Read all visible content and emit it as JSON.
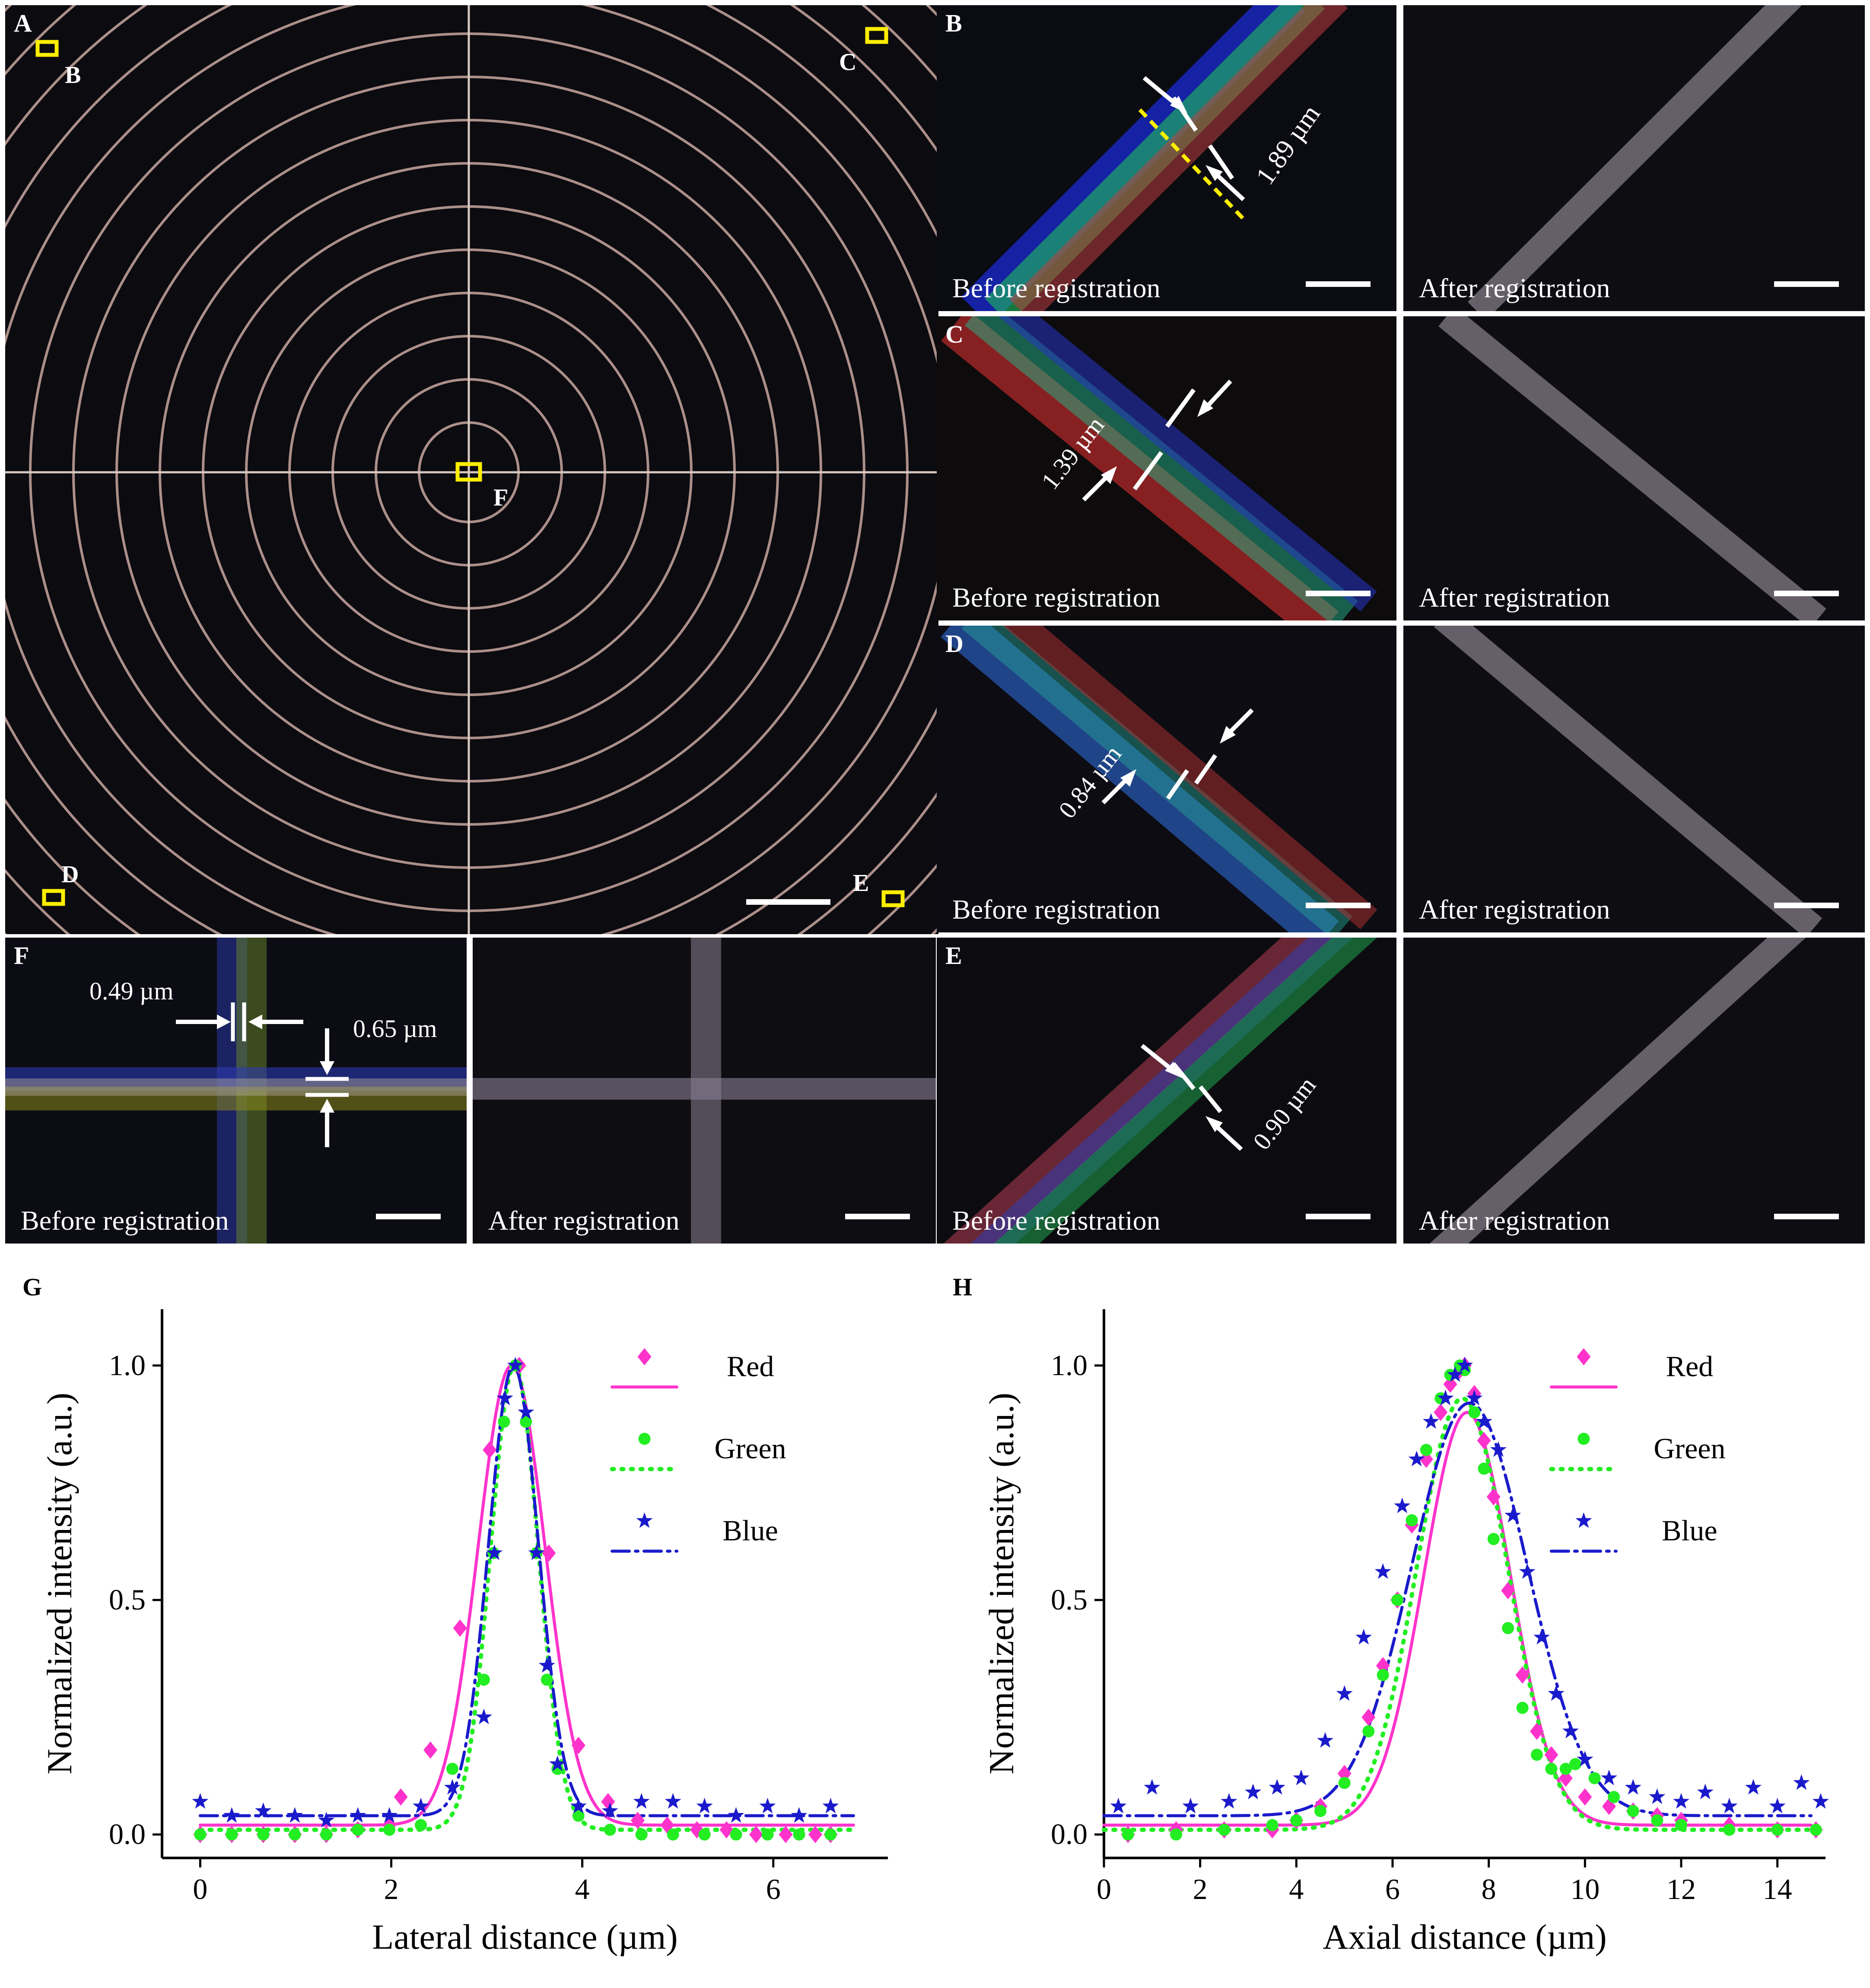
{
  "figure": {
    "panel_A": {
      "letter": "A",
      "markers": [
        "B",
        "C",
        "D",
        "E",
        "F"
      ]
    },
    "panel_B": {
      "letter": "B",
      "measurement": "1.89 µm",
      "before_label": "Before registration",
      "after_label": "After registration"
    },
    "panel_C": {
      "letter": "C",
      "measurement": "1.39 µm",
      "before_label": "Before registration",
      "after_label": "After registration"
    },
    "panel_D": {
      "letter": "D",
      "measurement": "0.84 µm",
      "before_label": "Before registration",
      "after_label": "After registration"
    },
    "panel_E": {
      "letter": "E",
      "measurement": "0.90 µm",
      "before_label": "Before registration",
      "after_label": "After registration"
    },
    "panel_F": {
      "letter": "F",
      "measurement_vertical": "0.49 µm",
      "measurement_horizontal": "0.65 µm",
      "before_label": "Before registration",
      "after_label": "After registration"
    },
    "colors": {
      "red_series": "#ff33cc",
      "green_series": "#22ee22",
      "blue_series": "#1a1acc",
      "marker_box": "#ffee00"
    }
  },
  "chart_data": [
    {
      "panel": "G",
      "type": "scatter",
      "xlabel": "Lateral distance (µm)",
      "ylabel": "Normalized intensity (a.u.)",
      "xlim": [
        -0.4,
        7.2
      ],
      "ylim": [
        -0.05,
        1.12
      ],
      "xticks": [
        0,
        2,
        4,
        6
      ],
      "yticks": [
        0.0,
        0.5,
        1.0
      ],
      "ytick_labels": [
        "0.0",
        "0.5",
        "1.0"
      ],
      "legend": [
        "Red",
        "Green",
        "Blue"
      ],
      "series": [
        {
          "name": "Red",
          "marker": "diamond",
          "fit_line": "solid",
          "x": [
            0.0,
            0.33,
            0.66,
            0.99,
            1.32,
            1.65,
            1.98,
            2.1,
            2.41,
            2.72,
            3.03,
            3.34,
            3.65,
            3.96,
            4.27,
            4.58,
            4.89,
            5.2,
            5.51,
            5.82,
            6.13,
            6.44,
            6.6
          ],
          "y": [
            0.0,
            0.0,
            0.0,
            0.0,
            0.0,
            0.01,
            0.02,
            0.08,
            0.18,
            0.44,
            0.82,
            1.0,
            0.6,
            0.19,
            0.07,
            0.03,
            0.02,
            0.01,
            0.01,
            0.0,
            0.0,
            0.0,
            0.0
          ],
          "fit": {
            "amp": 0.98,
            "center": 3.26,
            "sigma": 0.35,
            "offset": 0.02
          }
        },
        {
          "name": "Green",
          "marker": "circle",
          "fit_line": "dot",
          "x": [
            0.0,
            0.33,
            0.66,
            0.99,
            1.32,
            1.65,
            1.98,
            2.31,
            2.64,
            2.97,
            3.07,
            3.18,
            3.3,
            3.41,
            3.52,
            3.63,
            3.74,
            3.96,
            4.29,
            4.62,
            4.95,
            5.28,
            5.61,
            5.94,
            6.27,
            6.6
          ],
          "y": [
            0.0,
            0.0,
            0.0,
            0.0,
            0.0,
            0.01,
            0.01,
            0.02,
            0.14,
            0.33,
            0.6,
            0.88,
            1.0,
            0.88,
            0.6,
            0.33,
            0.14,
            0.04,
            0.01,
            0.0,
            0.0,
            0.0,
            0.0,
            0.0,
            0.0,
            0.0
          ],
          "fit": {
            "amp": 0.99,
            "center": 3.29,
            "sigma": 0.25,
            "offset": 0.01
          }
        },
        {
          "name": "Blue",
          "marker": "star",
          "fit_line": "dashdot",
          "x": [
            0.0,
            0.33,
            0.66,
            0.99,
            1.32,
            1.65,
            1.98,
            2.31,
            2.64,
            2.97,
            3.08,
            3.19,
            3.3,
            3.41,
            3.52,
            3.63,
            3.74,
            3.96,
            4.29,
            4.62,
            4.95,
            5.28,
            5.61,
            5.94,
            6.27,
            6.6
          ],
          "y": [
            0.07,
            0.04,
            0.05,
            0.04,
            0.03,
            0.04,
            0.04,
            0.06,
            0.1,
            0.25,
            0.6,
            0.93,
            1.0,
            0.9,
            0.6,
            0.36,
            0.15,
            0.06,
            0.05,
            0.07,
            0.07,
            0.06,
            0.04,
            0.06,
            0.04,
            0.06
          ],
          "fit": {
            "amp": 0.96,
            "center": 3.28,
            "sigma": 0.26,
            "offset": 0.04
          }
        }
      ]
    },
    {
      "panel": "H",
      "type": "scatter",
      "xlabel": "Axial distance (µm)",
      "ylabel": "Normalized intensity (a.u.)",
      "xlim": [
        0,
        15
      ],
      "ylim": [
        -0.05,
        1.12
      ],
      "xticks": [
        0,
        2,
        4,
        6,
        8,
        10,
        12,
        14
      ],
      "yticks": [
        0.0,
        0.5,
        1.0
      ],
      "ytick_labels": [
        "0.0",
        "0.5",
        "1.0"
      ],
      "legend": [
        "Red",
        "Green",
        "Blue"
      ],
      "series": [
        {
          "name": "Red",
          "marker": "diamond",
          "fit_line": "solid",
          "x": [
            0.5,
            1.5,
            2.5,
            3.5,
            4.0,
            4.5,
            5.0,
            5.5,
            5.8,
            6.1,
            6.4,
            6.7,
            7.0,
            7.2,
            7.4,
            7.5,
            7.7,
            7.9,
            8.1,
            8.4,
            8.7,
            9.0,
            9.3,
            9.6,
            10.0,
            10.5,
            11.0,
            11.5,
            12.0,
            13.0,
            14.0,
            14.8
          ],
          "y": [
            0.0,
            0.01,
            0.01,
            0.01,
            0.03,
            0.06,
            0.13,
            0.25,
            0.36,
            0.5,
            0.66,
            0.8,
            0.9,
            0.96,
            0.99,
            1.0,
            0.94,
            0.84,
            0.72,
            0.52,
            0.34,
            0.22,
            0.17,
            0.12,
            0.08,
            0.06,
            0.05,
            0.04,
            0.03,
            0.02,
            0.01,
            0.01
          ],
          "fit": {
            "amp": 0.88,
            "center": 7.55,
            "sigma": 0.9,
            "offset": 0.02
          }
        },
        {
          "name": "Green",
          "marker": "circle",
          "fit_line": "dot",
          "x": [
            0.5,
            1.5,
            2.5,
            3.5,
            4.0,
            4.5,
            5.0,
            5.5,
            5.8,
            6.1,
            6.4,
            6.7,
            7.0,
            7.2,
            7.4,
            7.5,
            7.7,
            7.9,
            8.1,
            8.4,
            8.7,
            9.0,
            9.3,
            9.6,
            9.8,
            10.2,
            10.6,
            11.0,
            11.5,
            12.0,
            13.0,
            14.0,
            14.8
          ],
          "y": [
            0.0,
            0.0,
            0.01,
            0.02,
            0.03,
            0.05,
            0.11,
            0.22,
            0.34,
            0.5,
            0.67,
            0.82,
            0.93,
            0.98,
            1.0,
            0.99,
            0.9,
            0.78,
            0.63,
            0.44,
            0.27,
            0.17,
            0.14,
            0.14,
            0.15,
            0.12,
            0.08,
            0.05,
            0.03,
            0.02,
            0.01,
            0.01,
            0.01
          ],
          "fit": {
            "amp": 0.92,
            "center": 7.45,
            "sigma": 0.95,
            "offset": 0.01
          }
        },
        {
          "name": "Blue",
          "marker": "star",
          "fit_line": "dashdot",
          "x": [
            0.3,
            1.0,
            1.8,
            2.6,
            3.1,
            3.6,
            4.1,
            4.6,
            5.0,
            5.4,
            5.8,
            6.2,
            6.5,
            6.8,
            7.1,
            7.3,
            7.5,
            7.7,
            7.9,
            8.2,
            8.5,
            8.8,
            9.1,
            9.4,
            9.7,
            10.0,
            10.5,
            11.0,
            11.5,
            12.0,
            12.5,
            13.0,
            13.5,
            14.0,
            14.5,
            14.9
          ],
          "y": [
            0.06,
            0.1,
            0.06,
            0.07,
            0.09,
            0.1,
            0.12,
            0.2,
            0.3,
            0.42,
            0.56,
            0.7,
            0.8,
            0.88,
            0.93,
            0.98,
            1.0,
            0.93,
            0.88,
            0.82,
            0.68,
            0.56,
            0.42,
            0.3,
            0.22,
            0.16,
            0.12,
            0.1,
            0.08,
            0.07,
            0.09,
            0.06,
            0.1,
            0.06,
            0.11,
            0.07
          ],
          "fit": {
            "amp": 0.88,
            "center": 7.6,
            "sigma": 1.2,
            "offset": 0.04
          }
        }
      ]
    }
  ]
}
